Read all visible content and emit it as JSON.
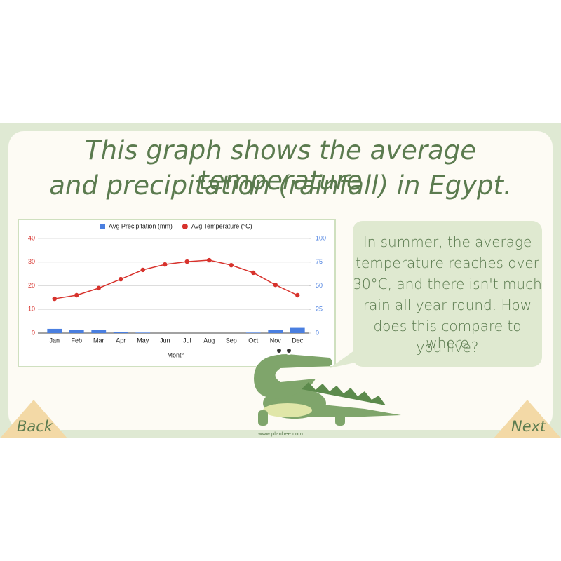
{
  "slide": {
    "title_lines": [
      "This graph shows the average temperature",
      "and precipitation (rainfall) in Egypt."
    ],
    "speech_lines": [
      "In summer, the average",
      "temperature reaches over",
      "30°C, and there isn't much",
      "rain all year round. How",
      "does this compare to where",
      "you live?"
    ],
    "back": "Back",
    "next": "Next",
    "footer": "www.planbee.com"
  },
  "chart_data": {
    "type": "combo",
    "x_label": "Month",
    "categories": [
      "Jan",
      "Feb",
      "Mar",
      "Apr",
      "May",
      "Jun",
      "Jul",
      "Aug",
      "Sep",
      "Oct",
      "Nov",
      "Dec"
    ],
    "series": [
      {
        "name": "Avg Precipitation (mm)",
        "type": "bar",
        "axis": "y2",
        "color": "#4a7fe0",
        "values": [
          4.5,
          3,
          3,
          1,
          0.5,
          0,
          0,
          0,
          0,
          0.5,
          3.5,
          5.5
        ]
      },
      {
        "name": "Avg Temperature (°C)",
        "type": "line",
        "color": "#d7322c",
        "values": [
          14.5,
          16,
          19,
          22.8,
          26.7,
          29,
          30.2,
          30.8,
          28.7,
          25.5,
          20.4,
          16
        ]
      }
    ],
    "ylim": [
      0,
      40
    ],
    "yticks": [
      0,
      10,
      20,
      30,
      40
    ],
    "y2lim": [
      0,
      100
    ],
    "y2ticks": [
      0,
      25,
      50,
      75,
      100
    ],
    "grid": true,
    "legend": "top"
  }
}
